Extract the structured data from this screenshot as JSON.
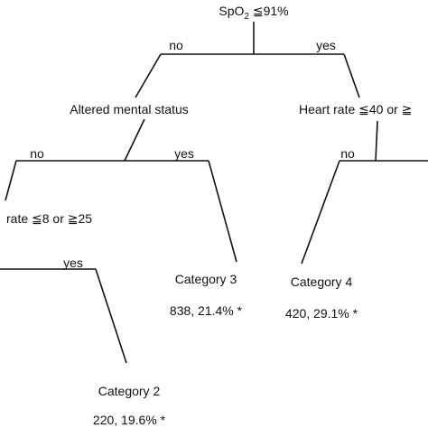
{
  "nodes": [
    {
      "label": {
        "main": "SpO",
        "sub": "2",
        "rest": " ≦91%"
      }
    },
    {
      "label": "Altered mental status"
    },
    {
      "label": "Heart rate ≦40 or ≧"
    },
    {
      "label": "rate ≦8 or ≧25"
    },
    {
      "label": "Category 3",
      "detail": "838, 21.4% *"
    },
    {
      "label": "Category 4",
      "detail": "420, 29.1% *"
    },
    {
      "label": "Category 2",
      "detail": "220, 19.6% *"
    }
  ],
  "edges": [
    {
      "label": "no"
    },
    {
      "label": "yes"
    },
    {
      "label": "no"
    },
    {
      "label": "yes"
    },
    {
      "label": "no"
    },
    {
      "label": "yes"
    }
  ]
}
